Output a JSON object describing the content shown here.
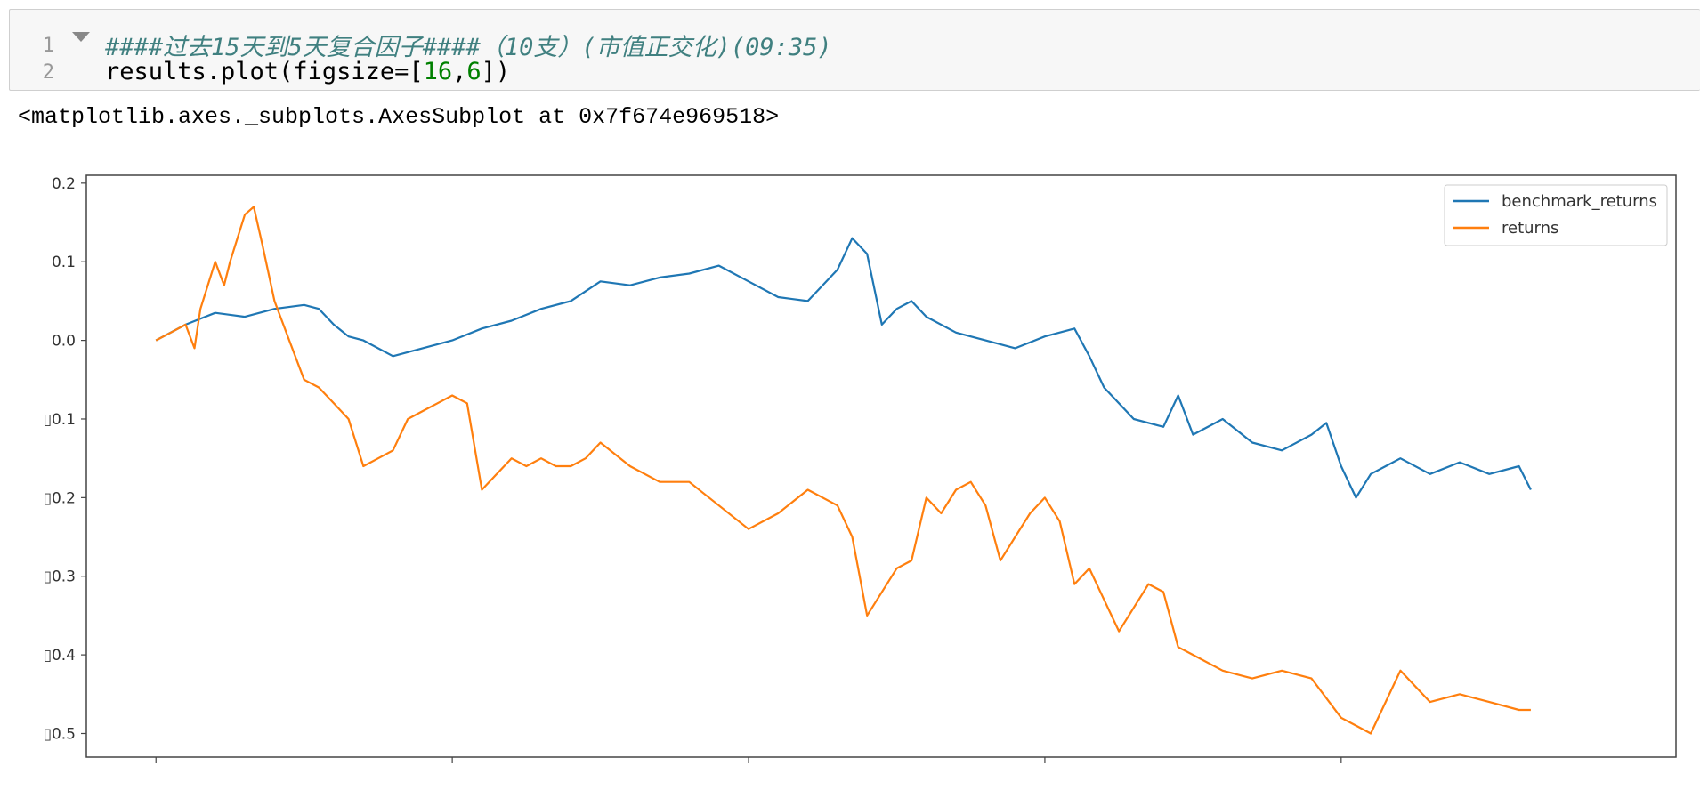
{
  "cell": {
    "line_numbers": [
      "1",
      "2"
    ],
    "code_line_1": "####过去15天到5天复合因子####（10支）(市值正交化)(09:35)",
    "code_line_2_prefix": "results.plot(figsize=[",
    "code_line_2_num1": "16",
    "code_line_2_comma": ",",
    "code_line_2_num2": "6",
    "code_line_2_suffix": "])"
  },
  "output": {
    "repr_text": "<matplotlib.axes._subplots.AxesSubplot at 0x7f674e969518>"
  },
  "chart_data": {
    "type": "line",
    "ylim": [
      -0.53,
      0.21
    ],
    "yticks": [
      0.2,
      0.1,
      0.0,
      -0.1,
      -0.2,
      -0.3,
      -0.4,
      -0.5
    ],
    "ytick_labels": [
      "0.2",
      "0.1",
      "0.0",
      "▯0.1",
      "▯0.2",
      "▯0.3",
      "▯0.4",
      "▯0.5"
    ],
    "xlim": [
      -0.235,
      5.13
    ],
    "xticks": [
      0,
      1,
      2,
      3,
      4
    ],
    "legend_position": "upper right",
    "grid": false,
    "series": [
      {
        "name": "benchmark_returns",
        "color": "#1f77b4",
        "x": [
          0,
          0.1,
          0.2,
          0.3,
          0.4,
          0.5,
          0.55,
          0.6,
          0.65,
          0.7,
          0.8,
          0.9,
          1.0,
          1.1,
          1.2,
          1.3,
          1.4,
          1.5,
          1.6,
          1.7,
          1.8,
          1.9,
          2.0,
          2.1,
          2.2,
          2.3,
          2.35,
          2.4,
          2.45,
          2.5,
          2.55,
          2.6,
          2.7,
          2.8,
          2.9,
          3.0,
          3.1,
          3.15,
          3.2,
          3.3,
          3.4,
          3.45,
          3.5,
          3.6,
          3.7,
          3.8,
          3.9,
          3.95,
          4.0,
          4.05,
          4.1,
          4.15,
          4.2,
          4.3,
          4.4,
          4.5,
          4.6,
          4.64
        ],
        "values": [
          0.0,
          0.02,
          0.035,
          0.03,
          0.04,
          0.045,
          0.04,
          0.02,
          0.005,
          0.0,
          -0.02,
          -0.01,
          0.0,
          0.015,
          0.025,
          0.04,
          0.05,
          0.075,
          0.07,
          0.08,
          0.085,
          0.095,
          0.075,
          0.055,
          0.05,
          0.09,
          0.13,
          0.11,
          0.02,
          0.04,
          0.05,
          0.03,
          0.01,
          0.0,
          -0.01,
          0.005,
          0.015,
          -0.02,
          -0.06,
          -0.1,
          -0.11,
          -0.07,
          -0.12,
          -0.1,
          -0.13,
          -0.14,
          -0.12,
          -0.105,
          -0.16,
          -0.2,
          -0.17,
          -0.16,
          -0.15,
          -0.17,
          -0.155,
          -0.17,
          -0.16,
          -0.19
        ]
      },
      {
        "name": "returns",
        "color": "#ff7f0e",
        "x": [
          0,
          0.05,
          0.1,
          0.13,
          0.15,
          0.2,
          0.23,
          0.25,
          0.3,
          0.33,
          0.36,
          0.4,
          0.45,
          0.5,
          0.55,
          0.6,
          0.65,
          0.7,
          0.75,
          0.8,
          0.85,
          0.9,
          0.95,
          1.0,
          1.05,
          1.1,
          1.15,
          1.2,
          1.25,
          1.3,
          1.35,
          1.4,
          1.45,
          1.5,
          1.6,
          1.7,
          1.8,
          1.9,
          2.0,
          2.1,
          2.2,
          2.3,
          2.35,
          2.4,
          2.5,
          2.55,
          2.6,
          2.65,
          2.7,
          2.75,
          2.8,
          2.85,
          2.9,
          2.95,
          3.0,
          3.05,
          3.1,
          3.15,
          3.2,
          3.25,
          3.3,
          3.35,
          3.4,
          3.45,
          3.5,
          3.6,
          3.7,
          3.8,
          3.9,
          4.0,
          4.05,
          4.1,
          4.15,
          4.2,
          4.3,
          4.4,
          4.5,
          4.6,
          4.64
        ],
        "values": [
          0.0,
          0.01,
          0.02,
          -0.01,
          0.04,
          0.1,
          0.07,
          0.1,
          0.16,
          0.17,
          0.12,
          0.05,
          0.0,
          -0.05,
          -0.06,
          -0.08,
          -0.1,
          -0.16,
          -0.15,
          -0.14,
          -0.1,
          -0.09,
          -0.08,
          -0.07,
          -0.08,
          -0.19,
          -0.17,
          -0.15,
          -0.16,
          -0.15,
          -0.16,
          -0.16,
          -0.15,
          -0.13,
          -0.16,
          -0.18,
          -0.18,
          -0.21,
          -0.24,
          -0.22,
          -0.19,
          -0.21,
          -0.25,
          -0.35,
          -0.29,
          -0.28,
          -0.2,
          -0.22,
          -0.19,
          -0.18,
          -0.21,
          -0.28,
          -0.25,
          -0.22,
          -0.2,
          -0.23,
          -0.31,
          -0.29,
          -0.33,
          -0.37,
          -0.34,
          -0.31,
          -0.32,
          -0.39,
          -0.4,
          -0.42,
          -0.43,
          -0.42,
          -0.43,
          -0.48,
          -0.49,
          -0.5,
          -0.46,
          -0.42,
          -0.46,
          -0.45,
          -0.46,
          -0.47,
          -0.47
        ]
      }
    ]
  }
}
